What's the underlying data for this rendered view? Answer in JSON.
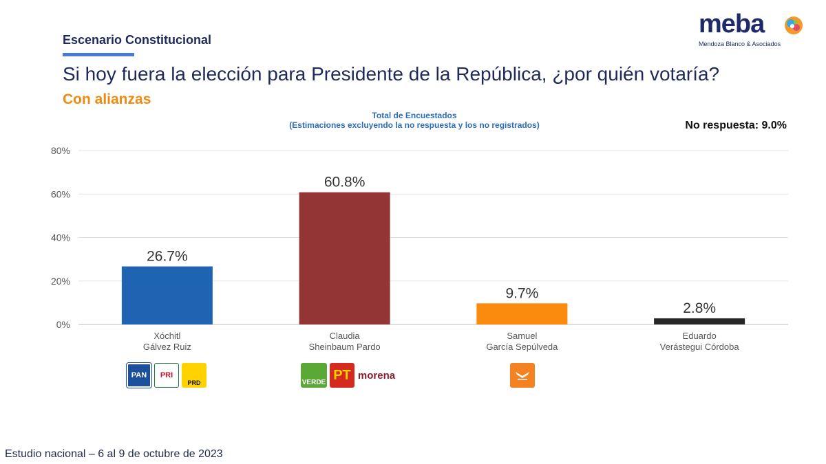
{
  "header": {
    "section_title": "Escenario Constitucional",
    "question": "Si hoy fuera la elección para Presidente de la República, ¿por quién votaría?",
    "subtitle": "Con alianzas",
    "chart_head_line1": "Total de Encuestados",
    "chart_head_line2": "(Estimaciones excluyendo la no respuesta y los no registrados)",
    "no_response": "No respuesta: 9.0%"
  },
  "logo": {
    "word": "meba",
    "subtitle": "Mendoza Blanco & Asociados"
  },
  "footer": "Estudio nacional – 6 al 9 de octubre de 2023",
  "parties": {
    "xochitl": [
      "PAN",
      "PRI",
      "PRD"
    ],
    "claudia": [
      "VERDE",
      "PT",
      "morena"
    ],
    "samuel": [
      "MC"
    ]
  },
  "chart_data": {
    "type": "bar",
    "categories": [
      [
        "Xóchitl",
        "Gálvez Ruiz"
      ],
      [
        "Claudia",
        "Sheinbaum Pardo"
      ],
      [
        "Samuel",
        "García Sepúlveda"
      ],
      [
        "Eduardo",
        "Verástegui Córdoba"
      ]
    ],
    "values": [
      26.7,
      60.8,
      9.7,
      2.8
    ],
    "labels": [
      "26.7%",
      "60.8%",
      "9.7%",
      "2.8%"
    ],
    "colors": [
      "#1f63b3",
      "#933535",
      "#fb8b0f",
      "#262626"
    ],
    "ylim": [
      0,
      80
    ],
    "yticks": [
      0,
      20,
      40,
      60,
      80
    ],
    "ytick_labels": [
      "0%",
      "20%",
      "40%",
      "60%",
      "80%"
    ],
    "grid": true
  }
}
